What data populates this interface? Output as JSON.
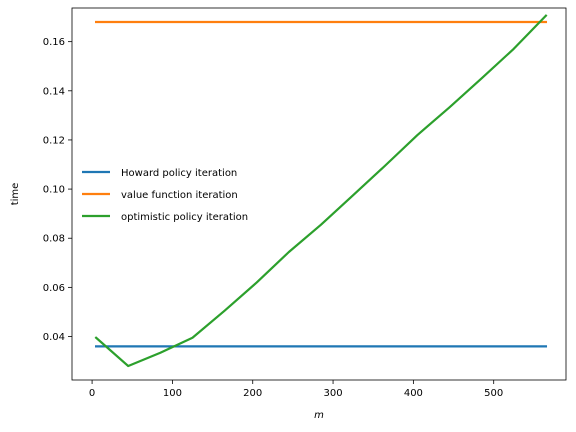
{
  "chart_data": {
    "type": "line",
    "xlabel": "m",
    "ylabel": "time",
    "xlim": [
      -25,
      590
    ],
    "ylim": [
      0.0223,
      0.1737
    ],
    "xticks": [
      0,
      100,
      200,
      300,
      400,
      500
    ],
    "yticks": [
      0.04,
      0.06,
      0.08,
      0.1,
      0.12,
      0.14,
      0.16
    ],
    "ytick_labels": [
      "0.04",
      "0.06",
      "0.08",
      "0.10",
      "0.12",
      "0.14",
      "0.16"
    ],
    "grid": false,
    "legend_position": "center-left",
    "series": [
      {
        "name": "Howard policy iteration",
        "color": "#1f77b4",
        "x": [
          5,
          565
        ],
        "y": [
          0.036,
          0.036
        ]
      },
      {
        "name": "value function iteration",
        "color": "#ff7f0e",
        "x": [
          5,
          565
        ],
        "y": [
          0.168,
          0.168
        ]
      },
      {
        "name": "optimistic policy iteration",
        "color": "#2ca02c",
        "x": [
          5,
          45,
          85,
          125,
          165,
          205,
          245,
          285,
          325,
          365,
          405,
          445,
          485,
          525,
          565
        ],
        "y": [
          0.0395,
          0.028,
          0.0334,
          0.0395,
          0.0505,
          0.062,
          0.0744,
          0.0855,
          0.0975,
          0.1096,
          0.122,
          0.1333,
          0.1451,
          0.1571,
          0.1706
        ]
      }
    ]
  }
}
